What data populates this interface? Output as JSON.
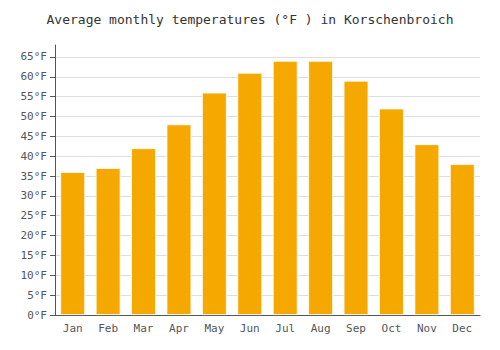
{
  "chart_data": {
    "type": "bar",
    "title": "Average monthly temperatures (°F ) in Korschenbroich",
    "categories": [
      "Jan",
      "Feb",
      "Mar",
      "Apr",
      "May",
      "Jun",
      "Jul",
      "Aug",
      "Sep",
      "Oct",
      "Nov",
      "Dec"
    ],
    "values": [
      36,
      37,
      42,
      48,
      56,
      61,
      64,
      64,
      59,
      52,
      43,
      38
    ],
    "color": "#F5A800",
    "ylim": [
      0,
      68
    ],
    "yticks": [
      {
        "value": 0,
        "label": "0°F"
      },
      {
        "value": 5,
        "label": "5°F"
      },
      {
        "value": 10,
        "label": "10°F"
      },
      {
        "value": 15,
        "label": "15°F"
      },
      {
        "value": 20,
        "label": "20°F"
      },
      {
        "value": 25,
        "label": "25°F"
      },
      {
        "value": 30,
        "label": "30°F"
      },
      {
        "value": 35,
        "label": "35°F"
      },
      {
        "value": 40,
        "label": "40°F"
      },
      {
        "value": 45,
        "label": "45°F"
      },
      {
        "value": 50,
        "label": "50°F"
      },
      {
        "value": 55,
        "label": "55°F"
      },
      {
        "value": 60,
        "label": "60°F"
      },
      {
        "value": 65,
        "label": "65°F"
      }
    ],
    "grid": true
  }
}
